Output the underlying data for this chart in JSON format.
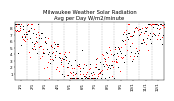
{
  "title": "Milwaukee Weather Solar Radiation",
  "subtitle": "Avg per Day W/m2/minute",
  "title_fontsize": 3.8,
  "subtitle_fontsize": 3.2,
  "background_color": "#ffffff",
  "ylim": [
    0,
    9
  ],
  "yticks": [
    1,
    2,
    3,
    4,
    5,
    6,
    7,
    8
  ],
  "ytick_labels": [
    "1",
    "2",
    "3",
    "4",
    "5",
    "6",
    "7",
    "8"
  ],
  "ylabel_fontsize": 3.0,
  "xlabel_fontsize": 2.8,
  "grid_color": "#999999",
  "dot_color_primary": "#ff0000",
  "dot_color_secondary": "#000000",
  "dot_size": 0.5,
  "n_points": 365,
  "seed": 99
}
